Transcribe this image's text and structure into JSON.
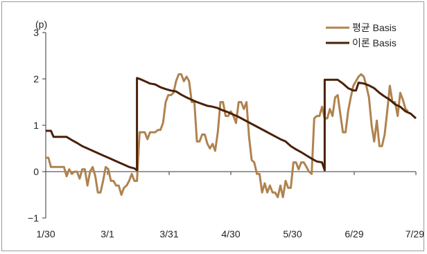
{
  "chart_data": {
    "type": "line",
    "unit_label": "(p)",
    "xlabel": "",
    "ylabel": "",
    "x_ticks": [
      "1/30",
      "3/1",
      "3/31",
      "4/30",
      "5/30",
      "6/29",
      "7/29"
    ],
    "y_ticks": [
      "3",
      "2",
      "1",
      "0",
      "−1"
    ],
    "ylim": [
      -1,
      3
    ],
    "legend_position": "top-right",
    "series": [
      {
        "name": "평균 Basis",
        "color": "#b0824f",
        "points": [
          [
            0,
            0.3
          ],
          [
            1,
            0.3
          ],
          [
            2,
            0.1
          ],
          [
            3,
            0.1
          ],
          [
            4,
            0.1
          ],
          [
            5,
            0.1
          ],
          [
            6,
            0.1
          ],
          [
            7,
            0.1
          ],
          [
            8,
            -0.1
          ],
          [
            9,
            0.05
          ],
          [
            10,
            -0.05
          ],
          [
            11,
            0.0
          ],
          [
            12,
            0.0
          ],
          [
            13,
            -0.15
          ],
          [
            14,
            0.05
          ],
          [
            15,
            0.05
          ],
          [
            16,
            -0.3
          ],
          [
            17,
            0.0
          ],
          [
            18,
            0.1
          ],
          [
            19,
            -0.1
          ],
          [
            20,
            -0.45
          ],
          [
            21,
            -0.45
          ],
          [
            22,
            -0.2
          ],
          [
            23,
            0.1
          ],
          [
            24,
            0.05
          ],
          [
            25,
            -0.2
          ],
          [
            26,
            -0.2
          ],
          [
            27,
            -0.3
          ],
          [
            28,
            -0.3
          ],
          [
            29,
            -0.5
          ],
          [
            30,
            -0.35
          ],
          [
            31,
            -0.3
          ],
          [
            32,
            -0.2
          ],
          [
            33,
            -0.05
          ],
          [
            34,
            -0.2
          ],
          [
            35,
            -0.2
          ],
          [
            36,
            0.85
          ],
          [
            37,
            0.85
          ],
          [
            38,
            0.85
          ],
          [
            39,
            0.7
          ],
          [
            40,
            0.85
          ],
          [
            41,
            0.85
          ],
          [
            42,
            0.85
          ],
          [
            43,
            0.9
          ],
          [
            44,
            0.9
          ],
          [
            45,
            1.05
          ],
          [
            46,
            1.5
          ],
          [
            47,
            1.65
          ],
          [
            48,
            1.65
          ],
          [
            49,
            1.7
          ],
          [
            50,
            1.95
          ],
          [
            51,
            2.1
          ],
          [
            52,
            2.1
          ],
          [
            53,
            1.95
          ],
          [
            54,
            2.05
          ],
          [
            55,
            1.95
          ],
          [
            56,
            1.5
          ],
          [
            57,
            1.5
          ],
          [
            58,
            0.65
          ],
          [
            59,
            0.65
          ],
          [
            60,
            0.8
          ],
          [
            61,
            0.8
          ],
          [
            62,
            0.6
          ],
          [
            63,
            0.5
          ],
          [
            64,
            0.6
          ],
          [
            65,
            0.45
          ],
          [
            66,
            0.85
          ],
          [
            67,
            1.5
          ],
          [
            68,
            1.5
          ],
          [
            69,
            1.2
          ],
          [
            70,
            1.2
          ],
          [
            71,
            1.3
          ],
          [
            72,
            1.2
          ],
          [
            73,
            1.05
          ],
          [
            74,
            1.5
          ],
          [
            75,
            1.5
          ],
          [
            76,
            1.35
          ],
          [
            77,
            1.5
          ],
          [
            78,
            0.75
          ],
          [
            79,
            0.25
          ],
          [
            80,
            0.2
          ],
          [
            81,
            -0.05
          ],
          [
            82,
            -0.05
          ],
          [
            83,
            -0.45
          ],
          [
            84,
            -0.25
          ],
          [
            85,
            -0.45
          ],
          [
            86,
            -0.3
          ],
          [
            87,
            -0.45
          ],
          [
            88,
            -0.45
          ],
          [
            89,
            -0.55
          ],
          [
            90,
            -0.3
          ],
          [
            91,
            -0.55
          ],
          [
            92,
            -0.2
          ],
          [
            93,
            -0.35
          ],
          [
            94,
            -0.35
          ],
          [
            95,
            0.2
          ],
          [
            96,
            0.2
          ],
          [
            97,
            0.05
          ],
          [
            98,
            0.2
          ],
          [
            99,
            0.2
          ],
          [
            100,
            0.1
          ],
          [
            101,
            0.0
          ],
          [
            102,
            -0.05
          ],
          [
            103,
            1.15
          ],
          [
            104,
            1.2
          ],
          [
            105,
            1.2
          ],
          [
            106,
            1.4
          ],
          [
            107,
            1.15
          ],
          [
            108,
            1.15
          ],
          [
            109,
            1.35
          ],
          [
            110,
            1.2
          ],
          [
            111,
            1.6
          ],
          [
            112,
            1.65
          ],
          [
            113,
            1.25
          ],
          [
            114,
            0.85
          ],
          [
            115,
            0.85
          ],
          [
            116,
            1.3
          ],
          [
            117,
            1.6
          ],
          [
            118,
            1.85
          ],
          [
            119,
            1.95
          ],
          [
            120,
            2.05
          ],
          [
            121,
            2.1
          ],
          [
            122,
            2.05
          ],
          [
            123,
            1.85
          ],
          [
            124,
            1.6
          ],
          [
            125,
            1.0
          ],
          [
            126,
            0.65
          ],
          [
            127,
            1.1
          ],
          [
            128,
            0.55
          ],
          [
            129,
            0.55
          ],
          [
            130,
            0.8
          ],
          [
            131,
            1.3
          ],
          [
            132,
            1.85
          ],
          [
            133,
            1.5
          ],
          [
            134,
            1.5
          ],
          [
            135,
            1.2
          ],
          [
            136,
            1.7
          ],
          [
            137,
            1.55
          ],
          [
            138,
            1.35
          ],
          [
            139,
            1.3
          ]
        ]
      },
      {
        "name": "이론 Basis",
        "color": "#4a2008",
        "points": [
          [
            0,
            0.88
          ],
          [
            2,
            0.88
          ],
          [
            3,
            0.75
          ],
          [
            8,
            0.75
          ],
          [
            10,
            0.68
          ],
          [
            12,
            0.62
          ],
          [
            14,
            0.55
          ],
          [
            16,
            0.5
          ],
          [
            18,
            0.45
          ],
          [
            20,
            0.4
          ],
          [
            22,
            0.35
          ],
          [
            24,
            0.3
          ],
          [
            26,
            0.25
          ],
          [
            28,
            0.2
          ],
          [
            30,
            0.15
          ],
          [
            32,
            0.1
          ],
          [
            34,
            0.07
          ],
          [
            35,
            0.03
          ],
          [
            35,
            2.02
          ],
          [
            36,
            2.0
          ],
          [
            38,
            1.95
          ],
          [
            40,
            1.9
          ],
          [
            42,
            1.88
          ],
          [
            44,
            1.82
          ],
          [
            46,
            1.78
          ],
          [
            48,
            1.75
          ],
          [
            50,
            1.73
          ],
          [
            52,
            1.66
          ],
          [
            54,
            1.6
          ],
          [
            56,
            1.55
          ],
          [
            58,
            1.5
          ],
          [
            60,
            1.46
          ],
          [
            62,
            1.42
          ],
          [
            64,
            1.4
          ],
          [
            66,
            1.37
          ],
          [
            68,
            1.32
          ],
          [
            70,
            1.28
          ],
          [
            72,
            1.23
          ],
          [
            74,
            1.18
          ],
          [
            76,
            1.12
          ],
          [
            78,
            1.06
          ],
          [
            80,
            1.0
          ],
          [
            82,
            0.94
          ],
          [
            84,
            0.88
          ],
          [
            86,
            0.82
          ],
          [
            88,
            0.76
          ],
          [
            90,
            0.7
          ],
          [
            92,
            0.65
          ],
          [
            94,
            0.55
          ],
          [
            96,
            0.48
          ],
          [
            98,
            0.42
          ],
          [
            100,
            0.35
          ],
          [
            102,
            0.28
          ],
          [
            104,
            0.22
          ],
          [
            106,
            0.2
          ],
          [
            107,
            0.03
          ],
          [
            107,
            1.98
          ],
          [
            112,
            1.98
          ],
          [
            114,
            1.9
          ],
          [
            116,
            1.8
          ],
          [
            118,
            1.75
          ],
          [
            119,
            1.75
          ],
          [
            120,
            1.92
          ],
          [
            122,
            1.9
          ],
          [
            124,
            1.86
          ],
          [
            126,
            1.8
          ],
          [
            128,
            1.7
          ],
          [
            130,
            1.62
          ],
          [
            132,
            1.55
          ],
          [
            134,
            1.45
          ],
          [
            136,
            1.4
          ],
          [
            138,
            1.3
          ],
          [
            140,
            1.25
          ],
          [
            141,
            1.2
          ],
          [
            142,
            1.15
          ]
        ],
        "x_max": 142
      }
    ]
  }
}
